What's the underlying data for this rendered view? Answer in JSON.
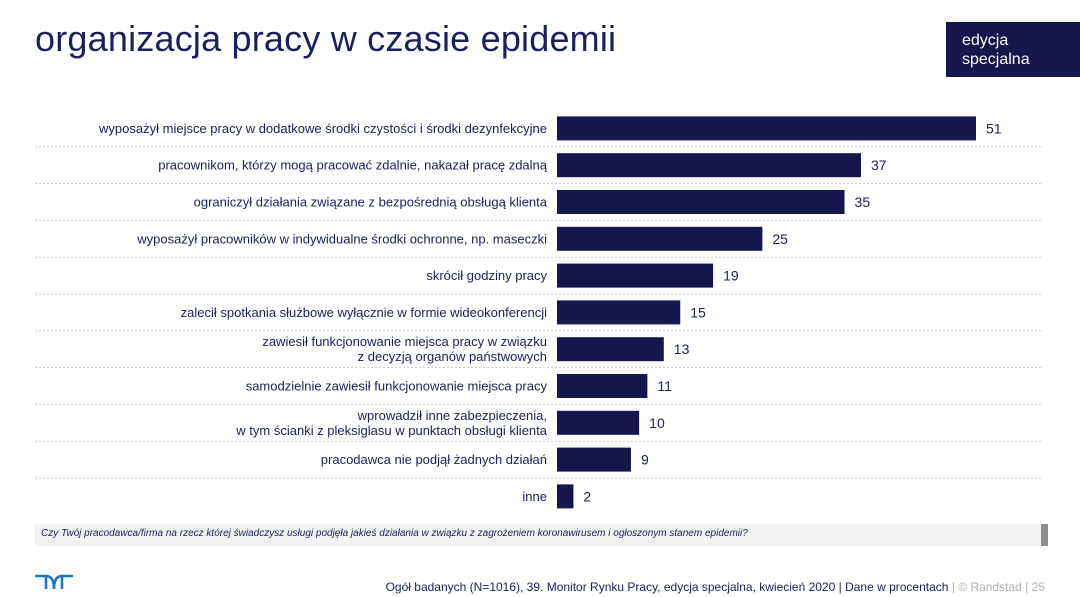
{
  "title": "organizacja pracy w czasie epidemii",
  "badge": {
    "line1": "edycja",
    "line2": "specjalna"
  },
  "question": "Czy Twój pracodawca/firma na rzecz której świadczysz usługi podjęła jakieś działania w związku z zagrożeniem koronawirusem i ogłoszonym stanem epidemii?",
  "footer": {
    "source": "Ogół badanych (N=1016), 39. Monitor Rynku Pracy, edycja specjalna, kwiecień 2020 | Dane w procentach",
    "sep1": "|",
    "brand": "© Randstad",
    "sep2": "|",
    "page": "25"
  },
  "colors": {
    "bar": "#14164d",
    "text": "#1b1f5c",
    "badge_bg": "#14164d",
    "divider": "#c8c8c8"
  },
  "chart_data": {
    "type": "bar",
    "orientation": "horizontal",
    "categories": [
      [
        "wyposażył miejsce pracy w dodatkowe środki czystości i środki dezynfekcyjne"
      ],
      [
        "pracownikom, którzy mogą pracować zdalnie, nakazał pracę zdalną"
      ],
      [
        "ograniczył działania związane z bezpośrednią obsługą klienta"
      ],
      [
        "wyposażył pracowników w indywidualne środki ochronne, np. maseczki"
      ],
      [
        "skrócił godziny pracy"
      ],
      [
        "zalecił spotkania służbowe wyłącznie w formie wideokonferencji"
      ],
      [
        "zawiesił funkcjonowanie miejsca pracy w związku",
        "z decyzją organów państwowych"
      ],
      [
        "samodzielnie zawiesił funkcjonowanie miejsca pracy"
      ],
      [
        "wprowadził inne zabezpieczenia,",
        "w tym ścianki z pleksiglasu w punktach obsługi klienta"
      ],
      [
        "pracodawca nie podjął żadnych działań"
      ],
      [
        "inne"
      ]
    ],
    "values": [
      51,
      37,
      35,
      25,
      19,
      15,
      13,
      11,
      10,
      9,
      2
    ],
    "data_labels": true,
    "legend": "none",
    "grid": false
  }
}
